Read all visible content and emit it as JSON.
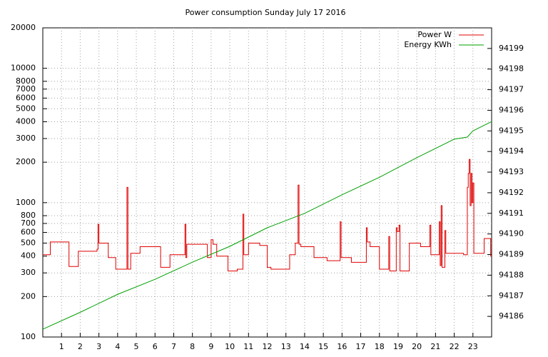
{
  "chart_data": {
    "type": "line",
    "title": "Power consumption Sunday July 17 2016",
    "xlim": [
      0,
      24
    ],
    "xticks": [
      1,
      2,
      3,
      4,
      5,
      6,
      7,
      8,
      9,
      10,
      11,
      12,
      13,
      14,
      15,
      16,
      17,
      18,
      19,
      20,
      21,
      22,
      23
    ],
    "ylim": [
      100,
      20000
    ],
    "yscale": "log",
    "yticks": [
      100,
      200,
      300,
      400,
      500,
      600,
      700,
      800,
      1000,
      2000,
      3000,
      4000,
      5000,
      6000,
      7000,
      8000,
      10000,
      20000
    ],
    "y2lim": [
      94185,
      94200
    ],
    "y2ticks": [
      94186,
      94187,
      94188,
      94189,
      94190,
      94191,
      94192,
      94193,
      94194,
      94195,
      94196,
      94197,
      94198,
      94199
    ],
    "grid": true,
    "legend": "top-right",
    "series": [
      {
        "name": "Power W",
        "color": "#e00000",
        "step": true,
        "x": [
          0,
          0.4,
          1.4,
          1.9,
          2.9,
          2.95,
          3.0,
          3.5,
          3.9,
          4.5,
          4.55,
          4.7,
          5.2,
          6.3,
          6.8,
          7.6,
          7.65,
          7.7,
          8.8,
          9.0,
          9.1,
          9.3,
          9.9,
          10.4,
          10.7,
          10.75,
          11.0,
          11.6,
          12.0,
          12.2,
          13.2,
          13.5,
          13.65,
          13.7,
          13.8,
          14.5,
          15.2,
          15.9,
          15.95,
          16.5,
          17.3,
          17.35,
          17.5,
          18.0,
          18.5,
          18.55,
          18.9,
          18.95,
          19.05,
          19.1,
          19.6,
          20.2,
          20.7,
          20.75,
          21.2,
          21.25,
          21.3,
          21.35,
          21.5,
          21.55,
          22.5,
          22.7,
          22.75,
          22.8,
          22.85,
          22.9,
          22.95,
          23.0,
          23.05,
          23.6,
          23.95,
          24
        ],
        "values": [
          410,
          510,
          335,
          435,
          450,
          690,
          500,
          390,
          320,
          1300,
          320,
          420,
          470,
          330,
          410,
          690,
          390,
          490,
          390,
          530,
          490,
          400,
          310,
          320,
          820,
          410,
          500,
          480,
          330,
          320,
          410,
          500,
          1350,
          490,
          470,
          390,
          370,
          720,
          390,
          360,
          650,
          510,
          470,
          320,
          560,
          310,
          650,
          610,
          680,
          310,
          500,
          470,
          680,
          410,
          720,
          340,
          950,
          330,
          620,
          420,
          410,
          1300,
          1650,
          2100,
          950,
          1650,
          1000,
          1400,
          420,
          540,
          400,
          400
        ]
      },
      {
        "name": "Energy KWh",
        "color": "#00a000",
        "axis": "y2",
        "x": [
          0,
          2,
          4,
          6,
          8,
          10,
          12,
          14,
          16,
          18,
          20,
          22,
          22.7,
          23,
          24
        ],
        "values": [
          94185.38,
          94186.2,
          94187.07,
          94187.8,
          94188.63,
          94189.4,
          94190.3,
          94191.0,
          94191.9,
          94192.75,
          94193.7,
          94194.6,
          94194.7,
          94195.0,
          94195.45
        ]
      }
    ]
  }
}
